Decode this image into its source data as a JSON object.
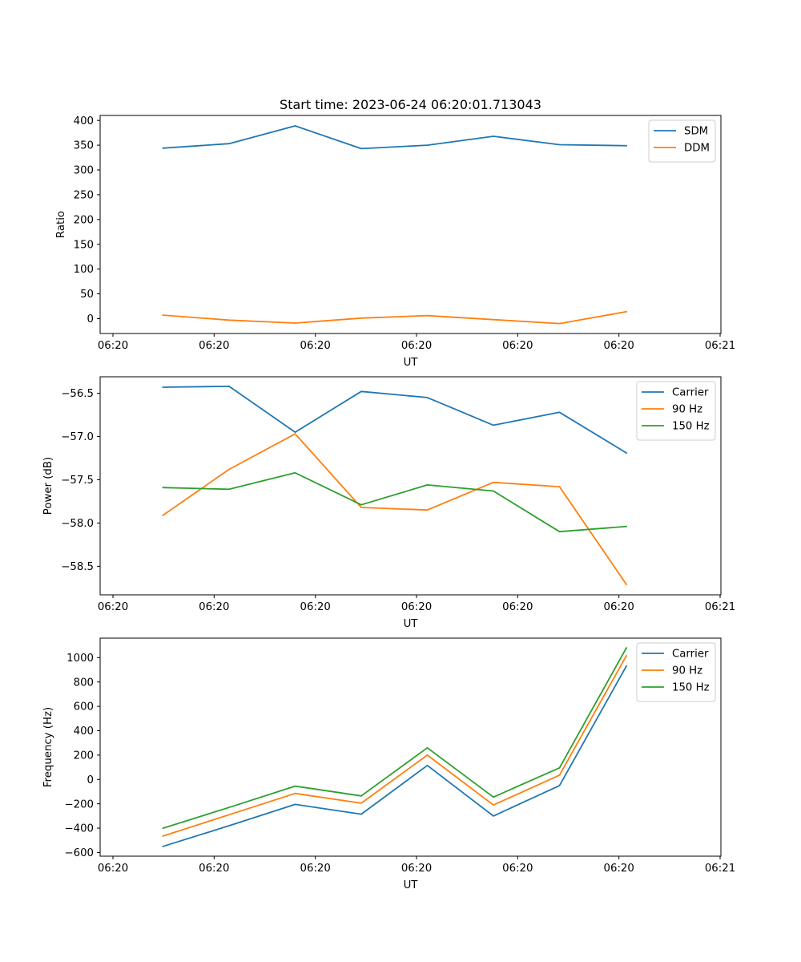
{
  "chart_data": [
    {
      "type": "line",
      "title": "Start time: 2023-06-24 06:20:01.713043",
      "xlabel": "UT",
      "ylabel": "Ratio",
      "x_tick_labels": [
        "06:20",
        "06:20",
        "06:20",
        "06:20",
        "06:20",
        "06:20",
        "06:20",
        "06:21"
      ],
      "y_ticks": [
        0,
        50,
        100,
        150,
        200,
        250,
        300,
        350,
        400
      ],
      "ylim": [
        -30,
        410
      ],
      "xlim": [
        -0.5,
        11.8
      ],
      "x": [
        0.5,
        1.8,
        3.6,
        4.9,
        6.2,
        7.6,
        8.9,
        10.2
      ],
      "legend": "top-right",
      "series": [
        {
          "name": "SDM",
          "color": "#1f77b4",
          "values": [
            344,
            353,
            389,
            343,
            350,
            368,
            351,
            349
          ]
        },
        {
          "name": "DDM",
          "color": "#ff7f0e",
          "values": [
            7,
            -3,
            -9,
            1,
            6,
            -2,
            -10,
            14
          ]
        }
      ]
    },
    {
      "type": "line",
      "title": "",
      "xlabel": "UT",
      "ylabel": "Power (dB)",
      "x_tick_labels": [
        "06:20",
        "06:20",
        "06:20",
        "06:20",
        "06:20",
        "06:20",
        "06:20",
        "06:21"
      ],
      "y_ticks": [
        -56.5,
        -57.0,
        -57.5,
        -58.0,
        -58.5
      ],
      "y_tick_labels": [
        "−56.5",
        "−57.0",
        "−57.5",
        "−58.0",
        "−58.5"
      ],
      "ylim": [
        -58.83,
        -56.31
      ],
      "xlim": [
        -0.5,
        11.8
      ],
      "x": [
        0.5,
        1.8,
        3.6,
        4.9,
        6.2,
        7.6,
        8.9,
        10.2
      ],
      "legend": "top-right",
      "series": [
        {
          "name": "Carrier",
          "color": "#1f77b4",
          "values": [
            -56.43,
            -56.42,
            -56.95,
            -56.48,
            -56.55,
            -56.87,
            -56.72,
            -57.19
          ]
        },
        {
          "name": "90 Hz",
          "color": "#ff7f0e",
          "values": [
            -57.91,
            -57.38,
            -56.97,
            -57.82,
            -57.85,
            -57.53,
            -57.58,
            -58.71
          ]
        },
        {
          "name": "150 Hz",
          "color": "#2ca02c",
          "values": [
            -57.59,
            -57.61,
            -57.42,
            -57.79,
            -57.56,
            -57.63,
            -58.1,
            -58.04
          ]
        }
      ]
    },
    {
      "type": "line",
      "title": "",
      "xlabel": "UT",
      "ylabel": "Frequency (Hz)",
      "x_tick_labels": [
        "06:20",
        "06:20",
        "06:20",
        "06:20",
        "06:20",
        "06:20",
        "06:20",
        "06:21"
      ],
      "y_ticks": [
        -600,
        -400,
        -200,
        0,
        200,
        400,
        600,
        800,
        1000
      ],
      "y_tick_labels": [
        "−600",
        "−400",
        "−200",
        "0",
        "200",
        "400",
        "600",
        "800",
        "1000"
      ],
      "ylim": [
        -630,
        1160
      ],
      "xlim": [
        -0.5,
        11.8
      ],
      "x": [
        0.5,
        1.8,
        3.6,
        4.9,
        6.2,
        7.6,
        8.9,
        10.2
      ],
      "legend": "top-right",
      "series": [
        {
          "name": "Carrier",
          "color": "#1f77b4",
          "values": [
            -550,
            -380,
            -205,
            -285,
            115,
            -300,
            -50,
            930
          ]
        },
        {
          "name": "90 Hz",
          "color": "#ff7f0e",
          "values": [
            -465,
            -290,
            -115,
            -195,
            200,
            -210,
            35,
            1015
          ]
        },
        {
          "name": "150 Hz",
          "color": "#2ca02c",
          "values": [
            -400,
            -230,
            -55,
            -135,
            260,
            -145,
            95,
            1080
          ]
        }
      ]
    }
  ]
}
